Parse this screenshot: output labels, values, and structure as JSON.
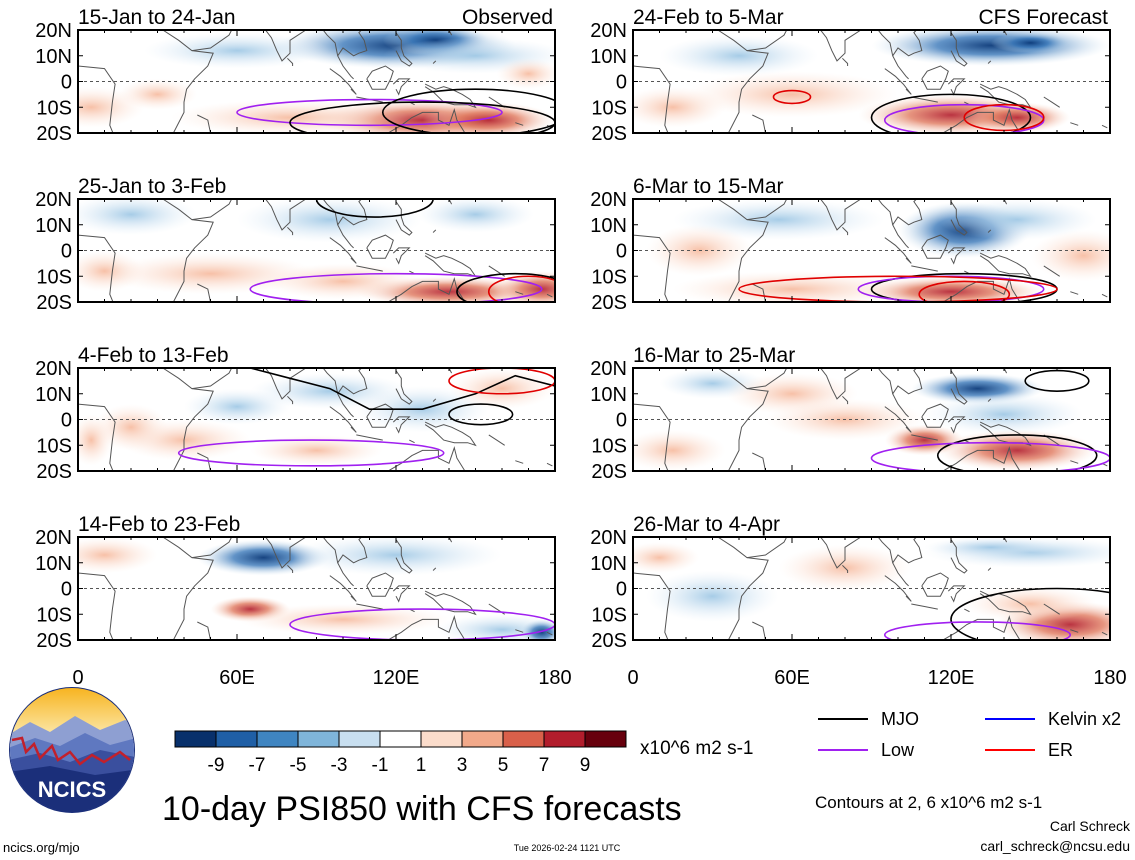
{
  "chart_data": {
    "type": "heatmap",
    "title": "10-day PSI850 with CFS forecasts",
    "colorbar": {
      "unit": "x10^6 m2 s-1",
      "tick_labels": [
        "-9",
        "-7",
        "-5",
        "-3",
        "-1",
        "1",
        "3",
        "5",
        "7",
        "9"
      ],
      "colors": [
        "#08306b",
        "#1f5fa6",
        "#3f85c1",
        "#7fb5da",
        "#c8dff0",
        "#ffffff",
        "#fbdccb",
        "#f2a98a",
        "#d9604a",
        "#b21d2c",
        "#67000d"
      ]
    },
    "x_axis": {
      "ticks": [
        "0",
        "60E",
        "120E",
        "180"
      ],
      "range": [
        0,
        180
      ]
    },
    "y_axis": {
      "ticks": [
        "20N",
        "10N",
        "0",
        "10S",
        "20S"
      ],
      "range": [
        -20,
        20
      ]
    },
    "panel_labels": {
      "observed": "Observed",
      "forecast": "CFS Forecast"
    },
    "panels": [
      {
        "date": "15-Jan to 24-Jan",
        "source": "observed"
      },
      {
        "date": "25-Jan to 3-Feb",
        "source": "observed"
      },
      {
        "date": "4-Feb to 13-Feb",
        "source": "observed"
      },
      {
        "date": "14-Feb to 23-Feb",
        "source": "observed"
      },
      {
        "date": "24-Feb to 5-Mar",
        "source": "forecast"
      },
      {
        "date": "6-Mar to 15-Mar",
        "source": "forecast"
      },
      {
        "date": "16-Mar to 25-Mar",
        "source": "forecast"
      },
      {
        "date": "26-Mar to 4-Apr",
        "source": "forecast"
      }
    ],
    "legend": [
      {
        "label": "MJO",
        "color": "#000000"
      },
      {
        "label": "Kelvin x2",
        "color": "#0000ff"
      },
      {
        "label": "Low",
        "color": "#a020f0"
      },
      {
        "label": "ER",
        "color": "#ff0000"
      }
    ],
    "contours_note": "Contours at 2, 6 x10^6 m2 s-1"
  },
  "logo": {
    "text": "NCICS"
  },
  "footer": {
    "site": "ncics.org/mjo",
    "timestamp": "Tue 2026-02-24 1121 UTC",
    "author": "Carl Schreck",
    "email": "carl_schreck@ncsu.edu"
  }
}
